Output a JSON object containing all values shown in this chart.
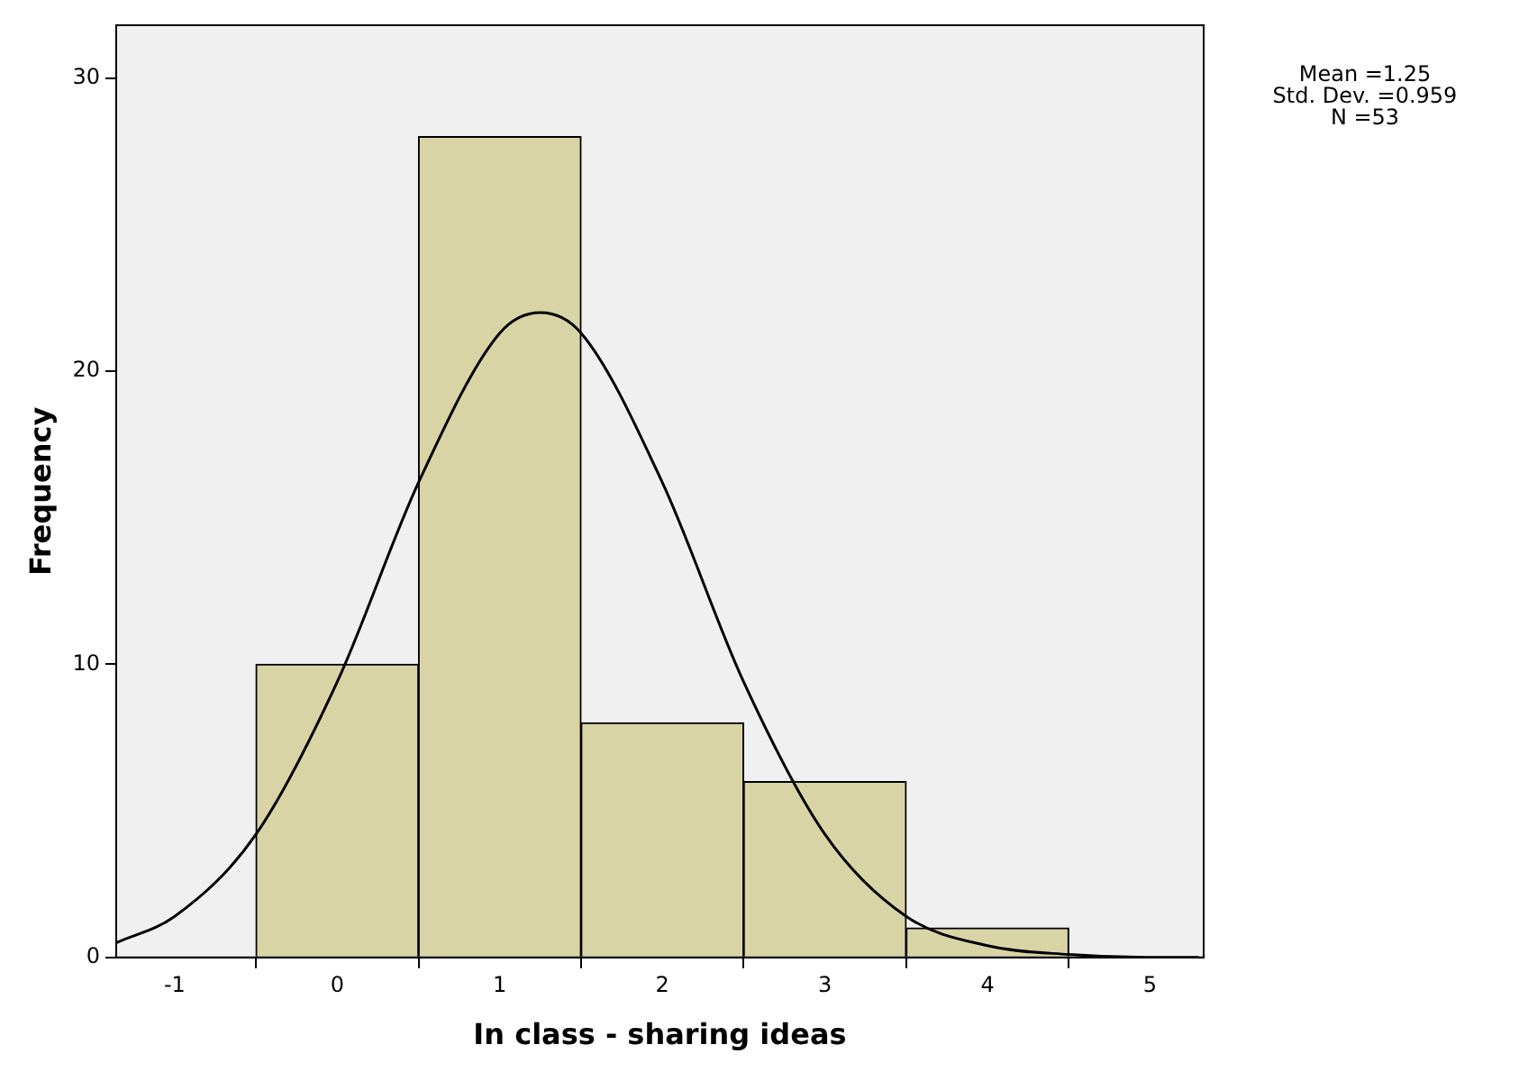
{
  "chart_data": {
    "type": "histogram",
    "xlabel": "In class - sharing ideas",
    "ylabel": "Frequency",
    "bins": [
      -0.5,
      0.5,
      1.5,
      2.5,
      3.5,
      4.5
    ],
    "values": [
      10,
      28,
      8,
      6,
      1
    ],
    "color": "#d9d4a5",
    "series": [
      {
        "type": "line",
        "color": "#000000",
        "x": [
          -1.36,
          -1,
          -0.5,
          0,
          0.5,
          1,
          1.25,
          1.5,
          2,
          2.5,
          3,
          3.5,
          4,
          4.5,
          5,
          5.3
        ],
        "values": [
          0.5,
          1.4,
          4.2,
          9.4,
          16.2,
          21.3,
          22.0,
          21.3,
          16.2,
          9.4,
          4.2,
          1.4,
          0.4,
          0.1,
          0,
          0
        ]
      }
    ],
    "xlim": [
      -1.36,
      5.33
    ],
    "xticks": [
      -1,
      0,
      1,
      2,
      3,
      4,
      5
    ],
    "ylim": [
      0,
      31.8
    ],
    "yticks": [
      0,
      10,
      20,
      30
    ],
    "grid": false,
    "legend": false,
    "marker": "none",
    "line_style": "solid",
    "annotations": [
      "Mean =1.25",
      "Std. Dev. =0.959",
      "N =53"
    ]
  }
}
